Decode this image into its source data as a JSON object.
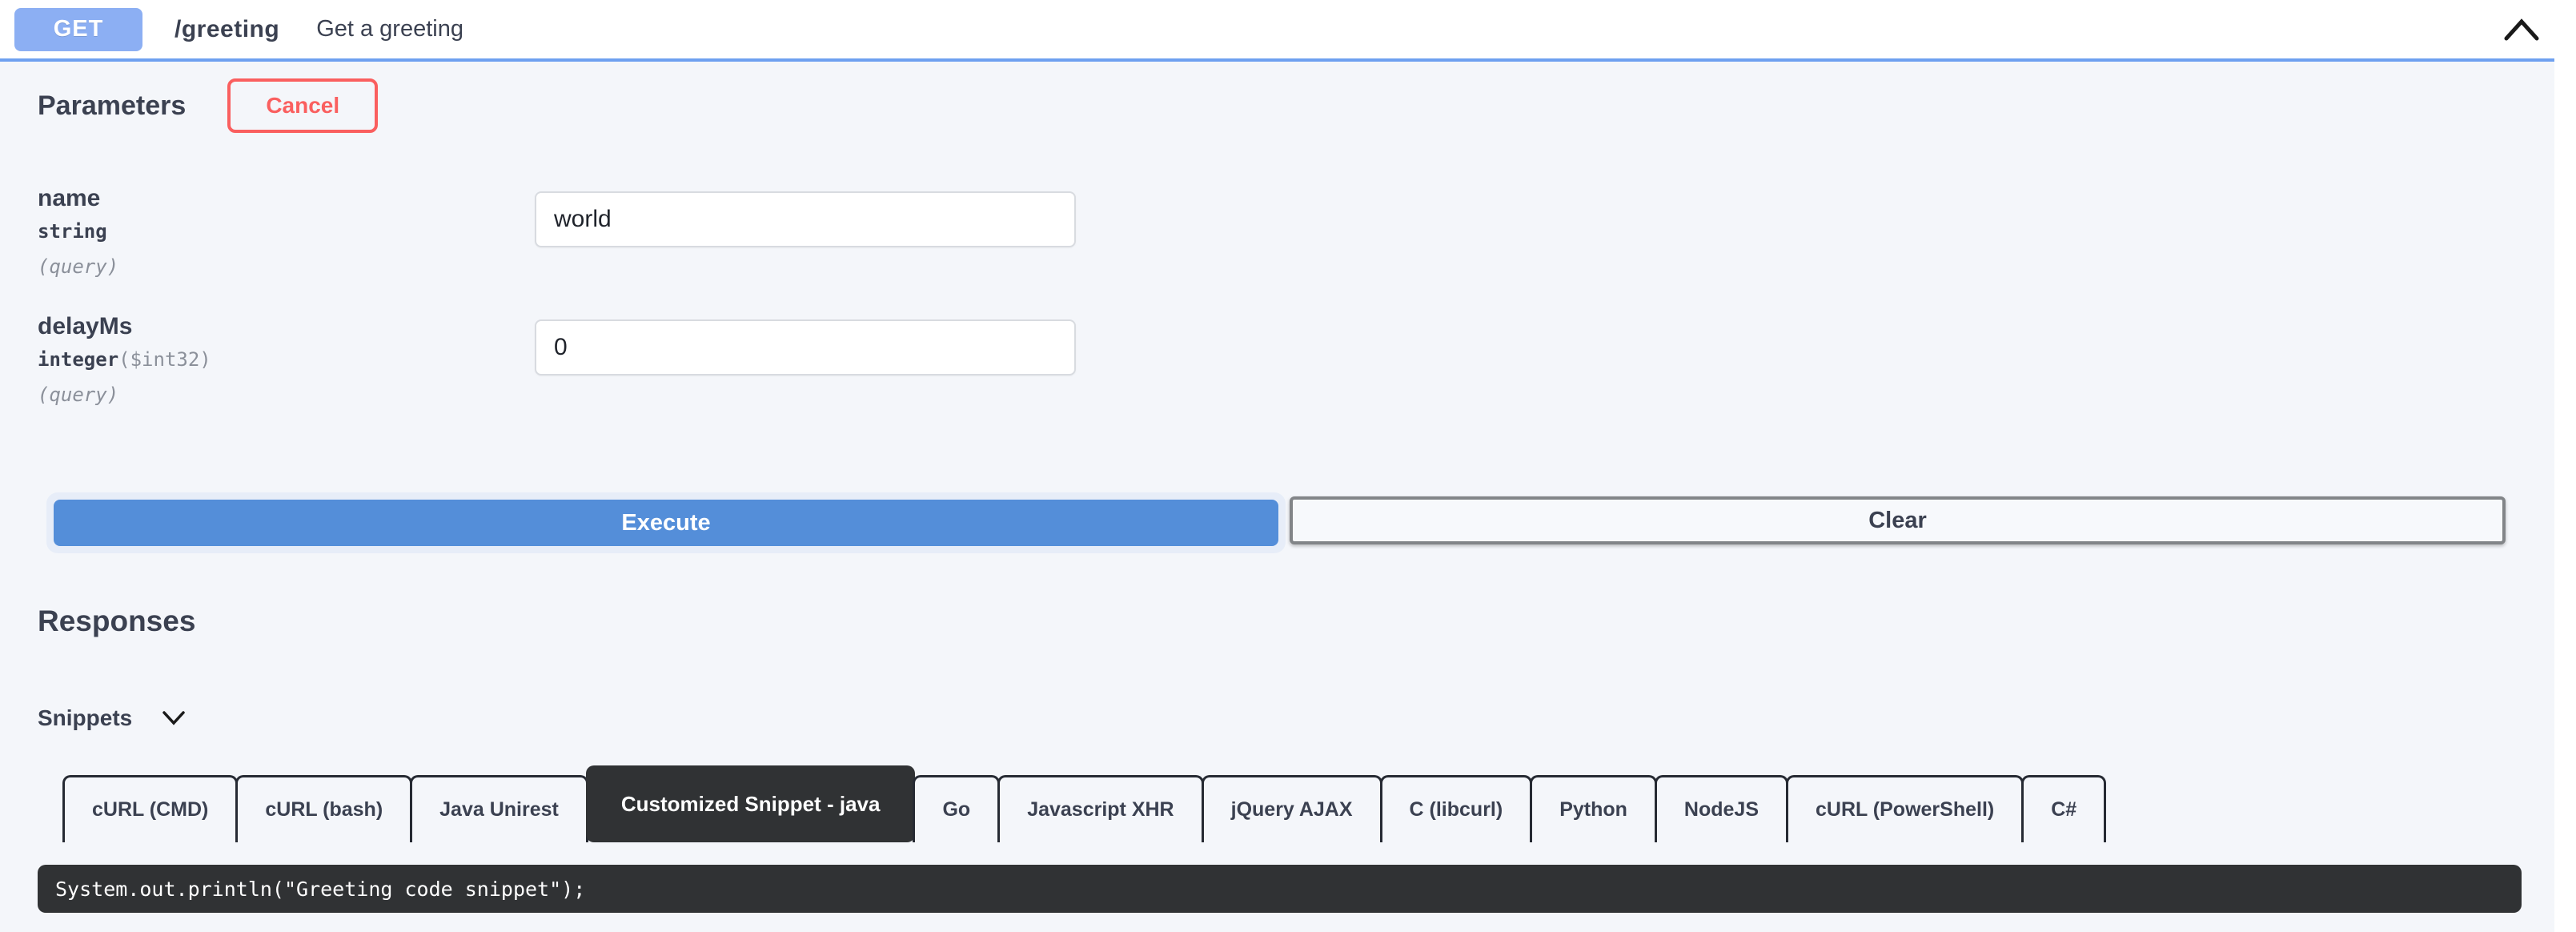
{
  "operation": {
    "method": "GET",
    "path": "/greeting",
    "summary": "Get a greeting"
  },
  "header_icons": {
    "collapse": "chevron-up"
  },
  "parameters_section": {
    "title": "Parameters",
    "cancel_label": "Cancel",
    "parameters": [
      {
        "name": "name",
        "type": "string",
        "format": "",
        "location": "(query)",
        "value": "world"
      },
      {
        "name": "delayMs",
        "type": "integer",
        "format": "($int32)",
        "location": "(query)",
        "value": "0"
      }
    ]
  },
  "actions": {
    "execute_label": "Execute",
    "clear_label": "Clear"
  },
  "responses_section": {
    "title": "Responses"
  },
  "snippets_section": {
    "label": "Snippets",
    "toggle_icon": "chevron-down",
    "tabs": [
      {
        "id": "curl-cmd",
        "label": "cURL (CMD)",
        "active": false
      },
      {
        "id": "curl-bash",
        "label": "cURL (bash)",
        "active": false
      },
      {
        "id": "java-unirest",
        "label": "Java Unirest",
        "active": false
      },
      {
        "id": "customized-snippet-java",
        "label": "Customized Snippet - java",
        "active": true
      },
      {
        "id": "go",
        "label": "Go",
        "active": false
      },
      {
        "id": "javascript-xhr",
        "label": "Javascript XHR",
        "active": false
      },
      {
        "id": "jquery-ajax",
        "label": "jQuery AJAX",
        "active": false
      },
      {
        "id": "c-libcurl",
        "label": "C (libcurl)",
        "active": false
      },
      {
        "id": "python",
        "label": "Python",
        "active": false
      },
      {
        "id": "nodejs",
        "label": "NodeJS",
        "active": false
      },
      {
        "id": "curl-powershell",
        "label": "cURL (PowerShell)",
        "active": false
      },
      {
        "id": "csharp",
        "label": "C#",
        "active": false
      }
    ],
    "code": "System.out.println(\"Greeting code snippet\");"
  },
  "colors": {
    "method-blue": "#8caff3",
    "header-border-blue": "#6ea0f0",
    "panel-bg": "#f4f6fa",
    "text-dark": "#3b4151",
    "text-gray": "#8b909a",
    "cancel-red": "#fa5f5f",
    "execute-blue": "#548ed9",
    "execute-glow": "#e7edf8",
    "clear-border-gray": "#828588",
    "tab-border-dark": "#262a33",
    "input-border": "#d8dbe0",
    "code-bg": "#303234",
    "code-text": "#ffffff"
  }
}
